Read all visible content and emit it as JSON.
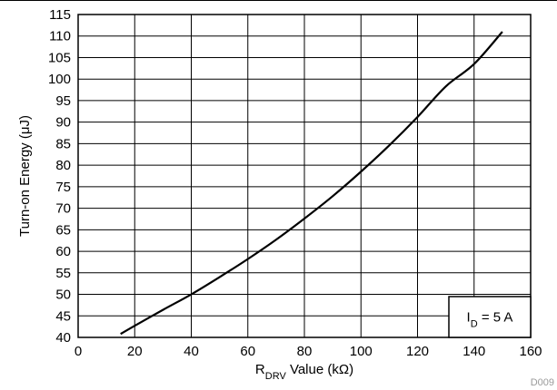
{
  "chart_data": {
    "type": "line",
    "title": "",
    "xlabel": {
      "main": "R",
      "sub": "DRV",
      "rest": " Value (kΩ)"
    },
    "ylabel": "Turn-on Energy (μJ)",
    "xlim": [
      0,
      160
    ],
    "ylim": [
      40,
      115
    ],
    "xticks": [
      0,
      20,
      40,
      60,
      80,
      100,
      120,
      140,
      160
    ],
    "yticks": [
      40,
      45,
      50,
      55,
      60,
      65,
      70,
      75,
      80,
      85,
      90,
      95,
      100,
      105,
      110,
      115
    ],
    "grid": true,
    "series": [
      {
        "color": "#000000",
        "x": [
          15,
          20,
          30,
          40,
          50,
          60,
          70,
          80,
          90,
          100,
          110,
          120,
          130,
          140,
          150
        ],
        "y": [
          40.8,
          42.7,
          46.4,
          50.0,
          54.0,
          58.2,
          62.7,
          67.6,
          72.8,
          78.5,
          84.6,
          91.2,
          98.3,
          103.5,
          111.0
        ]
      }
    ],
    "legend_box": {
      "main": "I",
      "sub": "D",
      "rest": " = 5 A",
      "placement": "bottom-right"
    },
    "figure_code": "D009"
  }
}
